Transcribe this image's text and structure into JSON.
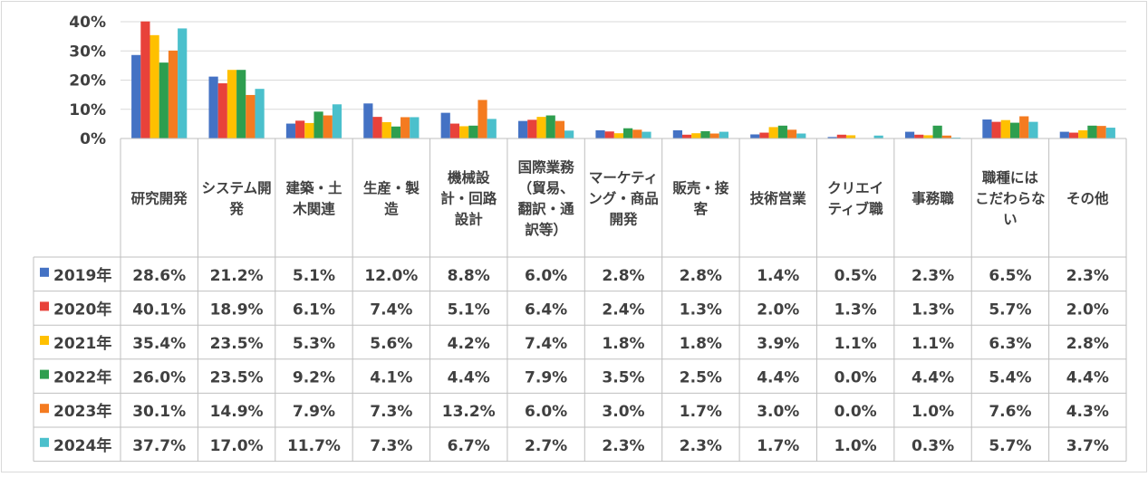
{
  "chart_data": {
    "type": "bar",
    "categories": [
      [
        "研究開発"
      ],
      [
        "システム開",
        "発"
      ],
      [
        "建築・土",
        "木関連"
      ],
      [
        "生産・製",
        "造"
      ],
      [
        "機械設",
        "計・回路",
        "設計"
      ],
      [
        "国際業務",
        "（貿易、",
        "翻訳・通",
        "訳等）"
      ],
      [
        "マーケティ",
        "ング・商品",
        "開発"
      ],
      [
        "販売・接",
        "客"
      ],
      [
        "技術営業"
      ],
      [
        "クリエイ",
        "ティブ職"
      ],
      [
        "事務職"
      ],
      [
        "職種には",
        "こだわらな",
        "い"
      ],
      [
        "その他"
      ]
    ],
    "series": [
      {
        "name": "2019年",
        "color": "#4472C4",
        "values": [
          28.6,
          21.2,
          5.1,
          12.0,
          8.8,
          6.0,
          2.8,
          2.8,
          1.4,
          0.5,
          2.3,
          6.5,
          2.3
        ]
      },
      {
        "name": "2020年",
        "color": "#E8423A",
        "values": [
          40.1,
          18.9,
          6.1,
          7.4,
          5.1,
          6.4,
          2.4,
          1.3,
          2.0,
          1.3,
          1.3,
          5.7,
          2.0
        ]
      },
      {
        "name": "2021年",
        "color": "#FFC000",
        "values": [
          35.4,
          23.5,
          5.3,
          5.6,
          4.2,
          7.4,
          1.8,
          1.8,
          3.9,
          1.1,
          1.1,
          6.3,
          2.8
        ]
      },
      {
        "name": "2022年",
        "color": "#2E9E4F",
        "values": [
          26.0,
          23.5,
          9.2,
          4.1,
          4.4,
          7.9,
          3.5,
          2.5,
          4.4,
          0.0,
          4.4,
          5.4,
          4.4
        ]
      },
      {
        "name": "2023年",
        "color": "#F47B20",
        "values": [
          30.1,
          14.9,
          7.9,
          7.3,
          13.2,
          6.0,
          3.0,
          1.7,
          3.0,
          0.0,
          1.0,
          7.6,
          4.3
        ]
      },
      {
        "name": "2024年",
        "color": "#4BC0CC",
        "values": [
          37.7,
          17.0,
          11.7,
          7.3,
          6.7,
          2.7,
          2.3,
          2.3,
          1.7,
          1.0,
          0.3,
          5.7,
          3.7
        ]
      }
    ],
    "y_ticks": [
      "0%",
      "10%",
      "20%",
      "30%",
      "40%"
    ],
    "ylim": [
      0,
      40
    ],
    "grid": true,
    "legend": "data-table"
  }
}
